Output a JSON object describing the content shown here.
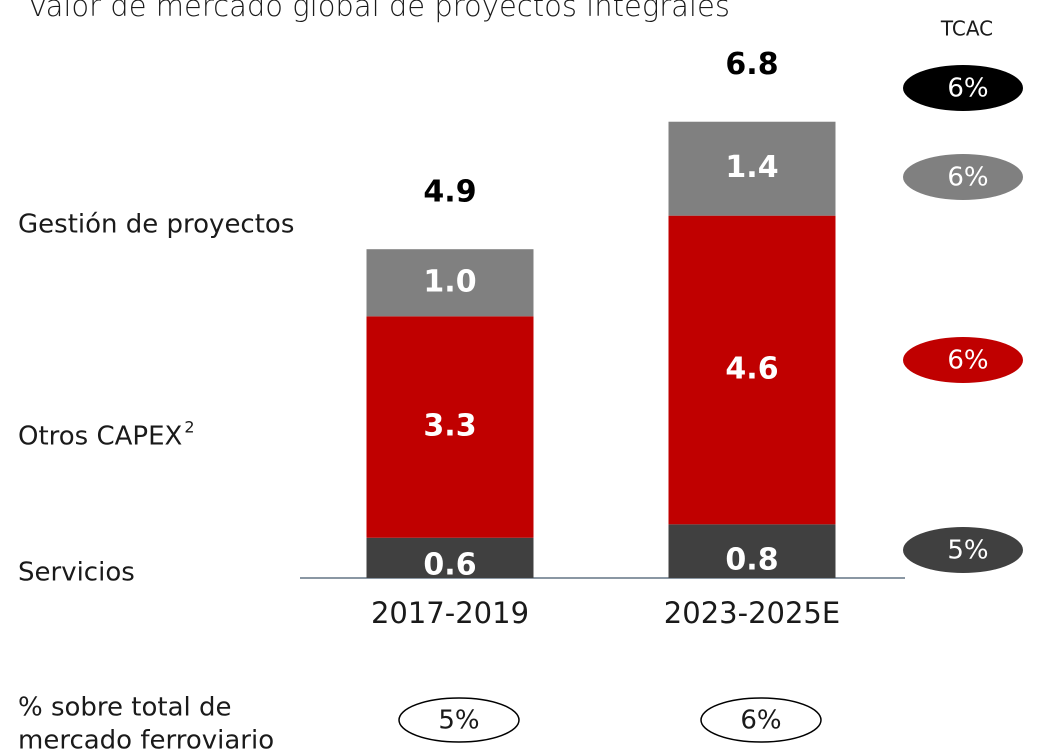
{
  "chart_data": {
    "type": "stacked_bar",
    "title": "Valor de mercado global de proyectos integrales",
    "categories": [
      "2017-2019",
      "2023-2025E"
    ],
    "series": [
      {
        "name": "Servicios",
        "color": "#404040",
        "values": [
          0.6,
          0.8
        ]
      },
      {
        "name": "Otros CAPEX",
        "note": "2",
        "color": "#c00000",
        "values": [
          3.3,
          4.6
        ]
      },
      {
        "name": "Gestión de proyectos",
        "color": "#808080",
        "values": [
          1.0,
          1.4
        ],
        "value_labels": [
          "1.0",
          "1.4"
        ]
      }
    ],
    "totals": [
      4.9,
      6.8
    ],
    "cagr": {
      "label": "TCAC",
      "values": [
        6,
        6,
        6,
        5
      ],
      "value_labels": [
        "6%",
        "6%",
        "6%",
        "5%"
      ],
      "colors": [
        "#000000",
        "#808080",
        "#c00000",
        "#404040"
      ]
    },
    "share": {
      "label": [
        "% sobre total de",
        "mercado ferroviario"
      ],
      "values": [
        5,
        6
      ],
      "value_labels": [
        "5%",
        "6%"
      ]
    }
  }
}
